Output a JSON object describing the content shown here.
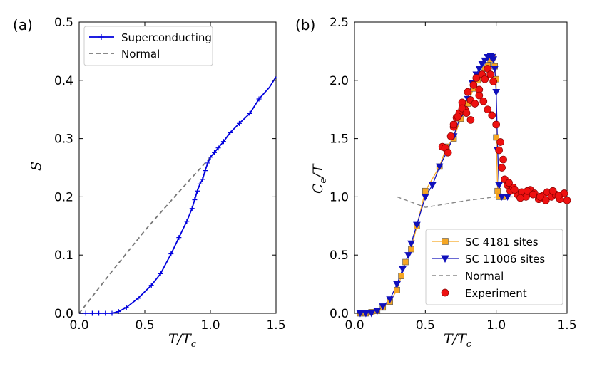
{
  "chart_data": [
    {
      "type": "line",
      "panel_label": "(a)",
      "xlabel": "T/T",
      "xlabel_sub": "c",
      "ylabel": "S",
      "xlim": [
        0.0,
        1.5
      ],
      "ylim": [
        0.0,
        0.5
      ],
      "xticks": [
        "0.0",
        "0.5",
        "1.0",
        "1.5"
      ],
      "yticks": [
        "0.0",
        "0.1",
        "0.2",
        "0.3",
        "0.4",
        "0.5"
      ],
      "legend_position": "top-left",
      "legend": [
        "Superconducting",
        "Normal"
      ],
      "series": [
        {
          "name": "Superconducting",
          "color": "#0000dd",
          "style": "solid",
          "marker": "plus",
          "x": [
            0.05,
            0.1,
            0.15,
            0.2,
            0.25,
            0.3,
            0.36,
            0.45,
            0.55,
            0.62,
            0.7,
            0.76,
            0.82,
            0.86,
            0.88,
            0.9,
            0.92,
            0.94,
            0.96,
            0.98,
            1.0,
            1.03,
            1.06,
            1.1,
            1.15,
            1.22,
            1.3,
            1.37
          ],
          "y": [
            0.0,
            0.0,
            0.0,
            0.0,
            0.0,
            0.003,
            0.01,
            0.026,
            0.048,
            0.068,
            0.102,
            0.13,
            0.158,
            0.18,
            0.195,
            0.21,
            0.222,
            0.23,
            0.245,
            0.258,
            0.268,
            0.276,
            0.284,
            0.295,
            0.31,
            0.326,
            0.343,
            0.368
          ]
        },
        {
          "name": "Normal",
          "color": "#777777",
          "style": "dashed",
          "x": [
            0.0,
            0.25,
            0.5,
            0.75,
            1.0
          ],
          "y": [
            0.0,
            0.072,
            0.142,
            0.206,
            0.268
          ]
        }
      ],
      "curve_extension": {
        "x": [
          1.37,
          1.45,
          1.5
        ],
        "y": [
          0.368,
          0.388,
          0.406
        ]
      }
    },
    {
      "type": "line",
      "panel_label": "(b)",
      "xlabel": "T/T",
      "xlabel_sub": "c",
      "ylabel": "C",
      "ylabel_sub": "e",
      "ylabel_suffix": "/T",
      "xlim": [
        0.0,
        1.5
      ],
      "ylim": [
        0.0,
        2.5
      ],
      "xticks": [
        "0.0",
        "0.5",
        "1.0",
        "1.5"
      ],
      "yticks": [
        "0.0",
        "0.5",
        "1.0",
        "1.5",
        "2.0",
        "2.5"
      ],
      "legend_position": "bottom-right",
      "legend": [
        "SC 4181 sites",
        "SC 11006 sites",
        "Normal",
        "Experiment"
      ],
      "series": [
        {
          "name": "SC 4181 sites",
          "color": "#f5a623",
          "marker": "square",
          "x": [
            0.04,
            0.08,
            0.12,
            0.16,
            0.2,
            0.25,
            0.3,
            0.33,
            0.36,
            0.4,
            0.44,
            0.5,
            0.6,
            0.65,
            0.7,
            0.75,
            0.8,
            0.84,
            0.87,
            0.9,
            0.92,
            0.94,
            0.96,
            0.98,
            0.99,
            1.0,
            1.0,
            1.01,
            1.02,
            1.05
          ],
          "y": [
            0.0,
            0.0,
            0.01,
            0.02,
            0.05,
            0.1,
            0.2,
            0.32,
            0.44,
            0.55,
            0.75,
            1.05,
            1.26,
            1.43,
            1.5,
            1.67,
            1.8,
            1.93,
            2.0,
            2.05,
            2.1,
            2.13,
            2.18,
            2.2,
            2.12,
            2.01,
            1.51,
            1.05,
            1.0,
            1.0
          ]
        },
        {
          "name": "SC 11006 sites",
          "color": "#1010bb",
          "marker": "triangle-down",
          "x": [
            0.04,
            0.08,
            0.12,
            0.16,
            0.2,
            0.25,
            0.3,
            0.34,
            0.38,
            0.4,
            0.44,
            0.5,
            0.55,
            0.6,
            0.65,
            0.7,
            0.75,
            0.8,
            0.83,
            0.86,
            0.88,
            0.9,
            0.92,
            0.94,
            0.96,
            0.97,
            0.98,
            0.99,
            1.0,
            1.01,
            1.02,
            1.04,
            1.08
          ],
          "y": [
            0.0,
            0.0,
            0.0,
            0.02,
            0.06,
            0.12,
            0.25,
            0.38,
            0.5,
            0.6,
            0.76,
            1.0,
            1.1,
            1.26,
            1.38,
            1.52,
            1.7,
            1.84,
            1.98,
            2.05,
            2.1,
            2.14,
            2.17,
            2.2,
            2.21,
            2.2,
            2.18,
            2.1,
            1.9,
            1.4,
            1.1,
            1.0,
            1.0
          ]
        },
        {
          "name": "Normal",
          "color": "#888888",
          "style": "dashed",
          "x": [
            0.3,
            0.5,
            0.6,
            0.8,
            1.0,
            1.1,
            1.3,
            1.5
          ],
          "y": [
            1.0,
            0.91,
            0.93,
            0.97,
            1.0,
            1.0,
            1.0,
            1.0
          ]
        },
        {
          "name": "Experiment",
          "color": "#ee1111",
          "marker": "circle",
          "x": [
            0.62,
            0.64,
            0.66,
            0.68,
            0.7,
            0.72,
            0.74,
            0.76,
            0.78,
            0.8,
            0.82,
            0.84,
            0.86,
            0.88,
            0.9,
            0.92,
            0.94,
            0.96,
            0.98,
            0.7,
            0.73,
            0.76,
            0.79,
            0.82,
            0.85,
            0.88,
            0.91,
            0.94,
            0.97,
            1.0,
            1.02,
            1.04,
            1.06,
            1.08,
            1.1,
            1.12,
            1.15,
            1.18,
            1.21,
            1.24,
            1.27,
            1.3,
            1.33,
            1.36,
            1.39,
            1.42,
            1.45,
            1.48,
            1.5,
            1.03,
            1.05,
            1.09,
            1.13,
            1.17,
            1.22,
            1.26,
            1.31,
            1.35,
            1.4,
            1.44
          ],
          "y": [
            1.43,
            1.42,
            1.38,
            1.52,
            1.6,
            1.68,
            1.72,
            1.81,
            1.75,
            1.9,
            1.83,
            1.96,
            2.02,
            1.92,
            2.05,
            2.01,
            2.1,
            2.05,
            1.99,
            1.62,
            1.69,
            1.76,
            1.72,
            1.66,
            1.8,
            1.87,
            1.82,
            1.75,
            1.7,
            1.62,
            1.4,
            1.25,
            1.15,
            1.1,
            1.05,
            1.08,
            1.02,
            1.04,
            1.0,
            1.06,
            1.03,
            0.98,
            1.01,
            1.04,
            1.0,
            1.02,
            0.98,
            1.03,
            0.97,
            1.47,
            1.32,
            1.12,
            1.06,
            0.99,
            1.05,
            1.02,
            1.0,
            0.97,
            1.05,
            1.01
          ]
        }
      ]
    }
  ]
}
